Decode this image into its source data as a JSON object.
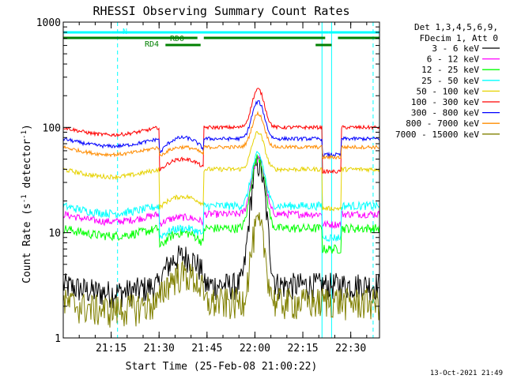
{
  "chart_data": {
    "type": "line",
    "title": "RHESSI Observing Summary Count Rates",
    "xlabel": "Start Time (25-Feb-08 21:00:22)",
    "ylabel_main": "Count Rate (s",
    "ylabel_sup1": "-1",
    "ylabel_mid": " detector",
    "ylabel_sup2": "-1",
    "ylabel_end": ")",
    "timestamp": "13-Oct-2021 21:49",
    "x_axis": {
      "start_min": 0,
      "end_min": 99,
      "unit": "minutes after 21:00:22"
    },
    "y_axis": {
      "scale": "log",
      "ylim": [
        1,
        1000
      ]
    },
    "x_ticks": [
      {
        "min": 15,
        "label": "21:15"
      },
      {
        "min": 30,
        "label": "21:30"
      },
      {
        "min": 45,
        "label": "21:45"
      },
      {
        "min": 60,
        "label": "22:00"
      },
      {
        "min": 75,
        "label": "22:15"
      },
      {
        "min": 90,
        "label": "22:30"
      }
    ],
    "y_ticks": [
      {
        "value": 1,
        "label": "1"
      },
      {
        "value": 10,
        "label": "10"
      },
      {
        "value": 100,
        "label": "100"
      },
      {
        "value": 1000,
        "label": "1000"
      }
    ],
    "legend_header": [
      "Det 1,3,4,5,6,9,",
      "FDecim 1, Att 0"
    ],
    "series": [
      {
        "name": "3 - 6 keV",
        "color": "#000000",
        "base": 3.2,
        "dip": 3.2,
        "hump": 6.0,
        "peak": 45,
        "noise": 0.3,
        "floor": 1
      },
      {
        "name": "6 - 12 keV",
        "color": "#ff00ff",
        "base": 15,
        "dip": 12,
        "hump": 14,
        "peak": 50,
        "noise": 0.08,
        "floor": 1
      },
      {
        "name": "12 - 25 keV",
        "color": "#00ff00",
        "base": 11,
        "dip": 7,
        "hump": 10,
        "peak": 52,
        "noise": 0.1,
        "floor": 1
      },
      {
        "name": "25 - 50 keV",
        "color": "#00ffff",
        "base": 18,
        "dip": 9,
        "hump": 11,
        "peak": 55,
        "noise": 0.09,
        "floor": 1
      },
      {
        "name": "50 - 100 keV",
        "color": "#e6d200",
        "base": 40,
        "dip": 17,
        "hump": 22,
        "peak": 90,
        "noise": 0.05,
        "floor": 1
      },
      {
        "name": "100 - 300 keV",
        "color": "#ff0000",
        "base": 100,
        "dip": 38,
        "hump": 50,
        "peak": 230,
        "noise": 0.04,
        "floor": 1
      },
      {
        "name": "300 - 800 keV",
        "color": "#0000ff",
        "base": 78,
        "dip": 55,
        "hump": 80,
        "peak": 175,
        "noise": 0.04,
        "floor": 1
      },
      {
        "name": "800 - 7000 keV",
        "color": "#ff8c00",
        "base": 65,
        "dip": 52,
        "hump": 65,
        "peak": 135,
        "noise": 0.04,
        "floor": 1
      },
      {
        "name": "7000 - 15000 keV",
        "color": "#808000",
        "base": 2.2,
        "dip": 2.3,
        "hump": 4.0,
        "peak": 12,
        "noise": 0.35,
        "floor": 1
      }
    ],
    "flag_bars": [
      {
        "label": "N",
        "color": "#00ffff",
        "y_level": "top",
        "spans": [
          [
            0,
            15
          ],
          [
            15,
            83
          ],
          [
            83,
            99
          ]
        ]
      },
      {
        "label": "RD0",
        "color": "#008000",
        "y_level": "mid",
        "spans": [
          [
            0,
            42
          ],
          [
            44,
            82
          ],
          [
            86,
            99
          ]
        ]
      },
      {
        "label": "RD4",
        "color": "#008000",
        "y_level": "low",
        "spans": [
          [
            32,
            43
          ],
          [
            79,
            84
          ]
        ]
      }
    ],
    "event_lines": [
      {
        "min": 17,
        "color": "#00ffff",
        "style": "dashed"
      },
      {
        "min": 81,
        "color": "#00ffff",
        "style": "solid"
      },
      {
        "min": 84,
        "color": "#00ffff",
        "style": "solid"
      },
      {
        "min": 97,
        "color": "#00ffff",
        "style": "dashed"
      }
    ],
    "attenuator_segments": [
      [
        30,
        44
      ],
      [
        81,
        87
      ]
    ],
    "grid": false,
    "legend_placement": "right"
  }
}
